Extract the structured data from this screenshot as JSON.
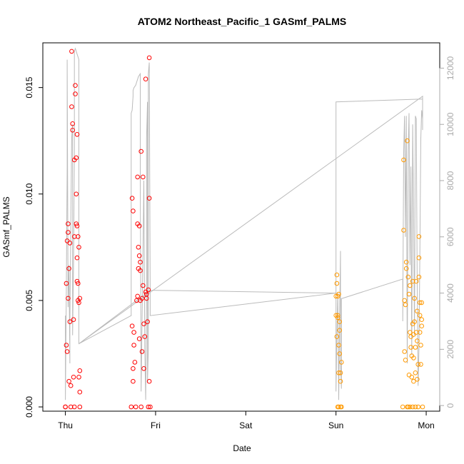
{
  "chart_data": {
    "type": "scatter",
    "title": "ATOM2 Northeast_Pacific_1 GASmf_PALMS",
    "xlabel": "Date",
    "ylabel": "GASmf_PALMS",
    "x_ticks": [
      "Thu",
      "Fri",
      "Sat",
      "Sun",
      "Mon"
    ],
    "xlim_days": [
      -0.25,
      4.15
    ],
    "ylim": [
      -0.0002,
      0.0171
    ],
    "y_ticks": [
      0.0,
      0.005,
      0.01,
      0.015
    ],
    "y_tick_labels": [
      "0.000",
      "0.005",
      "0.010",
      "0.015"
    ],
    "y2_ticks": [
      0,
      2000,
      4000,
      6000,
      8000,
      10000,
      12000
    ],
    "y2_tick_labels": [
      "0",
      "2000",
      "4000",
      "6000",
      "8000",
      "10000",
      "12000"
    ],
    "y2lim": [
      -200,
      12900
    ],
    "colors": {
      "red_points": "#ff0000",
      "orange_points": "#ff9900",
      "altitude_line": "#bbbbbb",
      "axis": "#000000",
      "right_axis": "#aaaaaa"
    },
    "series": [
      {
        "color": "red",
        "points": [
          [
            0.0,
            0.0
          ],
          [
            0.0,
            0.0
          ],
          [
            0.01,
            0.0029
          ],
          [
            0.01,
            0.0058
          ],
          [
            0.02,
            0.0078
          ],
          [
            0.02,
            0.0026
          ],
          [
            0.03,
            0.0082
          ],
          [
            0.03,
            0.0086
          ],
          [
            0.03,
            0.0051
          ],
          [
            0.04,
            0.0012
          ],
          [
            0.04,
            0.0065
          ],
          [
            0.05,
            0.0077
          ],
          [
            0.05,
            0.004
          ],
          [
            0.06,
            0.0
          ],
          [
            0.06,
            0.001
          ],
          [
            0.07,
            0.0167
          ],
          [
            0.07,
            0.0141
          ],
          [
            0.08,
            0.0133
          ],
          [
            0.08,
            0.013
          ],
          [
            0.09,
            0.0014
          ],
          [
            0.09,
            0.0041
          ],
          [
            0.1,
            0.0116
          ],
          [
            0.1,
            0.008
          ],
          [
            0.1,
            0.0
          ],
          [
            0.11,
            0.0151
          ],
          [
            0.11,
            0.0147
          ],
          [
            0.12,
            0.0117
          ],
          [
            0.12,
            0.0086
          ],
          [
            0.12,
            0.01
          ],
          [
            0.13,
            0.0128
          ],
          [
            0.13,
            0.0085
          ],
          [
            0.13,
            0.007
          ],
          [
            0.13,
            0.0059
          ],
          [
            0.14,
            0.008
          ],
          [
            0.14,
            0.0058
          ],
          [
            0.14,
            0.005
          ],
          [
            0.15,
            0.0049
          ],
          [
            0.15,
            0.0075
          ],
          [
            0.15,
            0.0014
          ],
          [
            0.16,
            0.0017
          ],
          [
            0.16,
            0.0007
          ],
          [
            0.16,
            0.0051
          ],
          [
            0.16,
            0.0
          ],
          [
            0.73,
            0.0
          ],
          [
            0.74,
            0.0098
          ],
          [
            0.74,
            0.0038
          ],
          [
            0.75,
            0.0018
          ],
          [
            0.75,
            0.0092
          ],
          [
            0.75,
            0.0012
          ],
          [
            0.76,
            0.0029
          ],
          [
            0.76,
            0.0035
          ],
          [
            0.77,
            0.0021
          ],
          [
            0.78,
            0.0
          ],
          [
            0.79,
            0.005
          ],
          [
            0.8,
            0.0086
          ],
          [
            0.8,
            0.0052
          ],
          [
            0.8,
            0.0108
          ],
          [
            0.81,
            0.0065
          ],
          [
            0.81,
            0.0075
          ],
          [
            0.82,
            0.0085
          ],
          [
            0.82,
            0.0032
          ],
          [
            0.82,
            0.0071
          ],
          [
            0.83,
            0.0068
          ],
          [
            0.83,
            0.0064
          ],
          [
            0.83,
            0.005
          ],
          [
            0.84,
            0.012
          ],
          [
            0.84,
            0.0
          ],
          [
            0.85,
            0.0026
          ],
          [
            0.85,
            0.0051
          ],
          [
            0.86,
            0.0108
          ],
          [
            0.86,
            0.0057
          ],
          [
            0.87,
            0.0018
          ],
          [
            0.87,
            0.0039
          ],
          [
            0.88,
            0.0033
          ],
          [
            0.89,
            0.0154
          ],
          [
            0.89,
            0.0054
          ],
          [
            0.9,
            0.0053
          ],
          [
            0.9,
            0.0051
          ],
          [
            0.91,
            0.004
          ],
          [
            0.92,
            0.0055
          ],
          [
            0.92,
            0.0
          ],
          [
            0.93,
            0.0164
          ],
          [
            0.93,
            0.0098
          ],
          [
            0.93,
            0.0012
          ],
          [
            0.94,
            0.0
          ]
        ]
      },
      {
        "color": "orange",
        "points": [
          [
            3.0,
            0.0043
          ],
          [
            3.0,
            0.0052
          ],
          [
            3.01,
            0.0062
          ],
          [
            3.01,
            0.0058
          ],
          [
            3.01,
            0.0033
          ],
          [
            3.02,
            0.0052
          ],
          [
            3.02,
            0.0042
          ],
          [
            3.02,
            0.0043
          ],
          [
            3.02,
            0.0
          ],
          [
            3.03,
            0.0053
          ],
          [
            3.03,
            0.0
          ],
          [
            3.03,
            0.0029
          ],
          [
            3.03,
            0.0016
          ],
          [
            3.04,
            0.004
          ],
          [
            3.04,
            0.0036
          ],
          [
            3.04,
            0.0025
          ],
          [
            3.05,
            0.0012
          ],
          [
            3.05,
            0.0016
          ],
          [
            3.05,
            0.0
          ],
          [
            3.06,
            0.0021
          ],
          [
            3.06,
            0.0
          ],
          [
            3.74,
            0.0
          ],
          [
            3.75,
            0.0116
          ],
          [
            3.75,
            0.0083
          ],
          [
            3.76,
            0.005
          ],
          [
            3.76,
            0.0026
          ],
          [
            3.77,
            0.0022
          ],
          [
            3.77,
            0.0048
          ],
          [
            3.78,
            0.0065
          ],
          [
            3.78,
            0.0068
          ],
          [
            3.79,
            0.0125
          ],
          [
            3.79,
            0.0
          ],
          [
            3.8,
            0.0061
          ],
          [
            3.8,
            0.0
          ],
          [
            3.81,
            0.0053
          ],
          [
            3.81,
            0.0015
          ],
          [
            3.82,
            0.0057
          ],
          [
            3.82,
            0.0035
          ],
          [
            3.82,
            0.0
          ],
          [
            3.83,
            0.0033
          ],
          [
            3.83,
            0.0028
          ],
          [
            3.84,
            0.0024
          ],
          [
            3.84,
            0.0014
          ],
          [
            3.85,
            0.0059
          ],
          [
            3.85,
            0.0039
          ],
          [
            3.85,
            0.0
          ],
          [
            3.86,
            0.0012
          ],
          [
            3.86,
            0.0034
          ],
          [
            3.86,
            0.0023
          ],
          [
            3.87,
            0.0051
          ],
          [
            3.87,
            0.004
          ],
          [
            3.88,
            0.0028
          ],
          [
            3.88,
            0.0016
          ],
          [
            3.88,
            0.0
          ],
          [
            3.89,
            0.0035
          ],
          [
            3.89,
            0.0059
          ],
          [
            3.9,
            0.0031
          ],
          [
            3.9,
            0.0013
          ],
          [
            3.9,
            0.0045
          ],
          [
            3.91,
            0.002
          ],
          [
            3.91,
            0.0
          ],
          [
            3.92,
            0.008
          ],
          [
            3.92,
            0.007
          ],
          [
            3.92,
            0.0061
          ],
          [
            3.93,
            0.0049
          ],
          [
            3.93,
            0.0043
          ],
          [
            3.93,
            0.0035
          ],
          [
            3.94,
            0.0029
          ],
          [
            3.94,
            0.002
          ],
          [
            3.95,
            0.0041
          ],
          [
            3.95,
            0.0038
          ],
          [
            3.95,
            0.0049
          ],
          [
            3.96,
            0.0
          ]
        ]
      }
    ],
    "altitude_line": [
      [
        0.0,
        3200
      ],
      [
        0.0,
        200
      ],
      [
        0.01,
        4000
      ],
      [
        0.02,
        8500
      ],
      [
        0.02,
        12300
      ],
      [
        0.03,
        3500
      ],
      [
        0.04,
        5000
      ],
      [
        0.05,
        1500
      ],
      [
        0.05,
        3000
      ],
      [
        0.06,
        6500
      ],
      [
        0.07,
        9500
      ],
      [
        0.08,
        10000
      ],
      [
        0.08,
        2500
      ],
      [
        0.09,
        5000
      ],
      [
        0.1,
        9000
      ],
      [
        0.1,
        12600
      ],
      [
        0.11,
        12700
      ],
      [
        0.12,
        12600
      ],
      [
        0.13,
        12500
      ],
      [
        0.14,
        12400
      ],
      [
        0.14,
        12400
      ],
      [
        0.15,
        12300
      ],
      [
        0.15,
        2200
      ],
      [
        0.73,
        3200
      ],
      [
        0.73,
        10400
      ],
      [
        0.74,
        10500
      ],
      [
        0.75,
        11000
      ],
      [
        0.75,
        11200
      ],
      [
        0.76,
        11300
      ],
      [
        0.78,
        11400
      ],
      [
        0.79,
        11500
      ],
      [
        0.8,
        11600
      ],
      [
        0.81,
        11700
      ],
      [
        0.83,
        11800
      ],
      [
        0.83,
        8000
      ],
      [
        0.84,
        500
      ],
      [
        0.85,
        3000
      ],
      [
        0.87,
        8000
      ],
      [
        0.88,
        2000
      ],
      [
        0.89,
        200
      ],
      [
        0.9,
        4000
      ],
      [
        0.9,
        9500
      ],
      [
        0.91,
        10800
      ],
      [
        0.91,
        800
      ],
      [
        0.92,
        2000
      ],
      [
        0.92,
        11800
      ],
      [
        0.93,
        12200
      ],
      [
        0.94,
        4100
      ],
      [
        3.0,
        4000
      ],
      [
        3.0,
        10800
      ],
      [
        3.0,
        500
      ],
      [
        3.01,
        2500
      ],
      [
        3.02,
        4000
      ],
      [
        3.03,
        200
      ],
      [
        3.04,
        3000
      ],
      [
        3.05,
        5500
      ],
      [
        3.05,
        1500
      ],
      [
        3.06,
        600
      ],
      [
        3.06,
        3800
      ],
      [
        3.74,
        4500
      ],
      [
        3.74,
        3000
      ],
      [
        3.75,
        9000
      ],
      [
        3.76,
        10300
      ],
      [
        3.77,
        6000
      ],
      [
        3.78,
        10300
      ],
      [
        3.79,
        1500
      ],
      [
        3.8,
        9000
      ],
      [
        3.81,
        10400
      ],
      [
        3.82,
        5000
      ],
      [
        3.83,
        8500
      ],
      [
        3.84,
        1800
      ],
      [
        3.85,
        10000
      ],
      [
        3.86,
        6800
      ],
      [
        3.87,
        2500
      ],
      [
        3.88,
        10300
      ],
      [
        3.89,
        10200
      ],
      [
        3.9,
        4500
      ],
      [
        3.91,
        700
      ],
      [
        3.92,
        2000
      ],
      [
        3.93,
        5500
      ],
      [
        3.94,
        9500
      ],
      [
        3.95,
        10500
      ],
      [
        3.96,
        10200
      ],
      [
        3.96,
        9800
      ],
      [
        3.96,
        10900
      ],
      [
        3.96,
        11000
      ],
      [
        0.15,
        2200
      ],
      [
        0.94,
        4100
      ],
      [
        0.94,
        3200
      ],
      [
        3.0,
        4000
      ],
      [
        3.0,
        10800
      ],
      [
        3.96,
        10900
      ]
    ]
  }
}
